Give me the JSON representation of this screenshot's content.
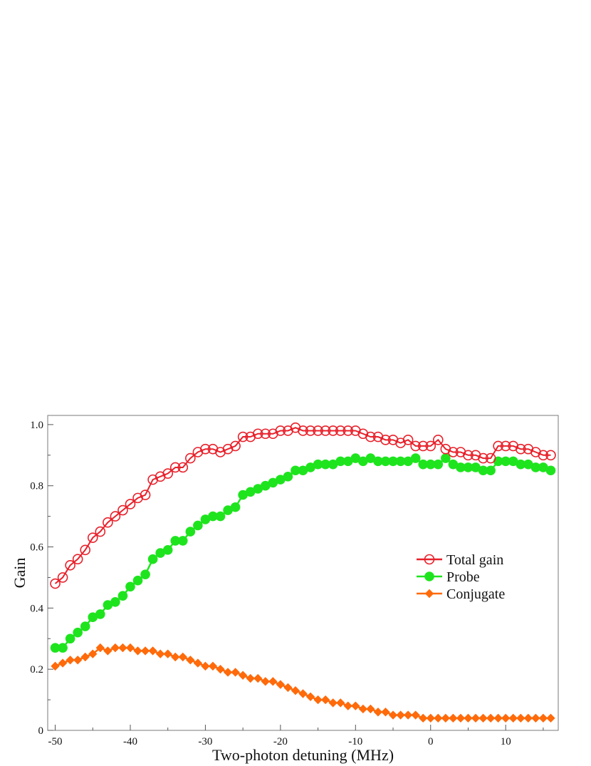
{
  "chart_data": {
    "type": "line",
    "title": "",
    "xlabel": "Two-photon detuning (MHz)",
    "ylabel": "Gain",
    "xlim": [
      -51,
      17
    ],
    "ylim": [
      0,
      1.03
    ],
    "x_ticks": [
      -50,
      -40,
      -30,
      -20,
      -10,
      0,
      10
    ],
    "x_tick_labels": [
      "-50",
      "-40",
      "-30",
      "-20",
      "-10",
      "0",
      "10"
    ],
    "y_ticks": [
      0,
      0.2,
      0.4,
      0.6,
      0.8,
      1.0
    ],
    "y_tick_labels": [
      "0",
      "0.2",
      "0.4",
      "0.6",
      "0.8",
      "1.0"
    ],
    "grid": false,
    "legend_position": "right-middle",
    "x": [
      -50,
      -49,
      -48,
      -47,
      -46,
      -45,
      -44,
      -43,
      -42,
      -41,
      -40,
      -39,
      -38,
      -37,
      -36,
      -35,
      -34,
      -33,
      -32,
      -31,
      -30,
      -29,
      -28,
      -27,
      -26,
      -25,
      -24,
      -23,
      -22,
      -21,
      -20,
      -19,
      -18,
      -17,
      -16,
      -15,
      -14,
      -13,
      -12,
      -11,
      -10,
      -9,
      -8,
      -7,
      -6,
      -5,
      -4,
      -3,
      -2,
      -1,
      0,
      1,
      2,
      3,
      4,
      5,
      6,
      7,
      8,
      9,
      10,
      11,
      12,
      13,
      14,
      15,
      16
    ],
    "series": [
      {
        "name": "Total gain",
        "color": "#e8202a",
        "marker": "open-circle",
        "values": [
          0.48,
          0.5,
          0.54,
          0.56,
          0.59,
          0.63,
          0.65,
          0.68,
          0.7,
          0.72,
          0.74,
          0.76,
          0.77,
          0.82,
          0.83,
          0.84,
          0.86,
          0.86,
          0.89,
          0.91,
          0.92,
          0.92,
          0.91,
          0.92,
          0.93,
          0.96,
          0.96,
          0.97,
          0.97,
          0.97,
          0.98,
          0.98,
          0.99,
          0.98,
          0.98,
          0.98,
          0.98,
          0.98,
          0.98,
          0.98,
          0.98,
          0.97,
          0.96,
          0.96,
          0.95,
          0.95,
          0.94,
          0.95,
          0.93,
          0.93,
          0.93,
          0.95,
          0.92,
          0.91,
          0.91,
          0.9,
          0.9,
          0.89,
          0.89,
          0.93,
          0.93,
          0.93,
          0.92,
          0.92,
          0.91,
          0.9,
          0.9
        ]
      },
      {
        "name": "Probe",
        "color": "#1ee41e",
        "marker": "filled-circle",
        "values": [
          0.27,
          0.27,
          0.3,
          0.32,
          0.34,
          0.37,
          0.38,
          0.41,
          0.42,
          0.44,
          0.47,
          0.49,
          0.51,
          0.56,
          0.58,
          0.59,
          0.62,
          0.62,
          0.65,
          0.67,
          0.69,
          0.7,
          0.7,
          0.72,
          0.73,
          0.77,
          0.78,
          0.79,
          0.8,
          0.81,
          0.82,
          0.83,
          0.85,
          0.85,
          0.86,
          0.87,
          0.87,
          0.87,
          0.88,
          0.88,
          0.89,
          0.88,
          0.89,
          0.88,
          0.88,
          0.88,
          0.88,
          0.88,
          0.89,
          0.87,
          0.87,
          0.87,
          0.89,
          0.87,
          0.86,
          0.86,
          0.86,
          0.85,
          0.85,
          0.88,
          0.88,
          0.88,
          0.87,
          0.87,
          0.86,
          0.86,
          0.85
        ]
      },
      {
        "name": "Conjugate",
        "color": "#ff6a0a",
        "marker": "filled-diamond",
        "values": [
          0.21,
          0.22,
          0.23,
          0.23,
          0.24,
          0.25,
          0.27,
          0.26,
          0.27,
          0.27,
          0.27,
          0.26,
          0.26,
          0.26,
          0.25,
          0.25,
          0.24,
          0.24,
          0.23,
          0.22,
          0.21,
          0.21,
          0.2,
          0.19,
          0.19,
          0.18,
          0.17,
          0.17,
          0.16,
          0.16,
          0.15,
          0.14,
          0.13,
          0.12,
          0.11,
          0.1,
          0.1,
          0.09,
          0.09,
          0.08,
          0.08,
          0.07,
          0.07,
          0.06,
          0.06,
          0.05,
          0.05,
          0.05,
          0.05,
          0.04,
          0.04,
          0.04,
          0.04,
          0.04,
          0.04,
          0.04,
          0.04,
          0.04,
          0.04,
          0.04,
          0.04,
          0.04,
          0.04,
          0.04,
          0.04,
          0.04,
          0.04
        ]
      }
    ]
  }
}
